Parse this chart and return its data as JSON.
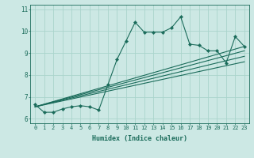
{
  "title": "",
  "xlabel": "Humidex (Indice chaleur)",
  "bg_color": "#cce8e4",
  "line_color": "#1a6b5a",
  "grid_color": "#aad4cc",
  "xlim": [
    -0.5,
    23.5
  ],
  "ylim": [
    5.8,
    11.2
  ],
  "xticks": [
    0,
    1,
    2,
    3,
    4,
    5,
    6,
    7,
    8,
    9,
    10,
    11,
    12,
    13,
    14,
    15,
    16,
    17,
    18,
    19,
    20,
    21,
    22,
    23
  ],
  "yticks": [
    6,
    7,
    8,
    9,
    10,
    11
  ],
  "main_x": [
    0,
    1,
    2,
    3,
    4,
    5,
    6,
    7,
    8,
    9,
    10,
    11,
    12,
    13,
    14,
    15,
    16,
    17,
    18,
    19,
    20,
    21,
    22,
    23
  ],
  "main_y": [
    6.65,
    6.3,
    6.3,
    6.45,
    6.55,
    6.6,
    6.55,
    6.4,
    7.55,
    8.7,
    9.55,
    10.4,
    9.95,
    9.95,
    9.95,
    10.15,
    10.65,
    9.4,
    9.35,
    9.1,
    9.1,
    8.55,
    9.75,
    9.3
  ],
  "trend_lines": [
    {
      "x": [
        0,
        23
      ],
      "y": [
        6.55,
        9.3
      ]
    },
    {
      "x": [
        0,
        23
      ],
      "y": [
        6.55,
        9.1
      ]
    },
    {
      "x": [
        0,
        23
      ],
      "y": [
        6.55,
        8.85
      ]
    },
    {
      "x": [
        0,
        23
      ],
      "y": [
        6.55,
        8.6
      ]
    }
  ]
}
